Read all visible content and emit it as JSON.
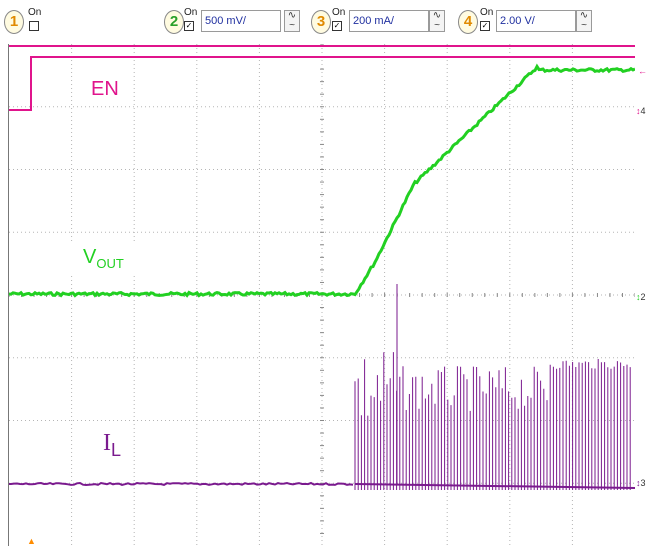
{
  "toolbar": {
    "channels": [
      {
        "number": "1",
        "on_label": "On",
        "checked": false,
        "color": "#ff8c00"
      },
      {
        "number": "2",
        "on_label": "On",
        "checked": true,
        "scale": "500 mV/",
        "color": "#22c022"
      },
      {
        "number": "3",
        "on_label": "On",
        "checked": true,
        "scale": "200 mA/",
        "color": "#ff8c00"
      },
      {
        "number": "4",
        "on_label": "On",
        "checked": true,
        "scale": "2.00 V/",
        "color": "#ff8c00"
      }
    ],
    "coupling_glyph": "∿"
  },
  "traces": {
    "en": {
      "label": "EN",
      "color": "#e0148c"
    },
    "vout": {
      "label_main": "V",
      "label_sub": "OUT",
      "color": "#22d022"
    },
    "il": {
      "label_main": "I",
      "label_sub": "L",
      "color": "#7a1a8e"
    }
  },
  "markers": {
    "ch4": "4",
    "ch2": "2",
    "ch3": "3"
  }
}
